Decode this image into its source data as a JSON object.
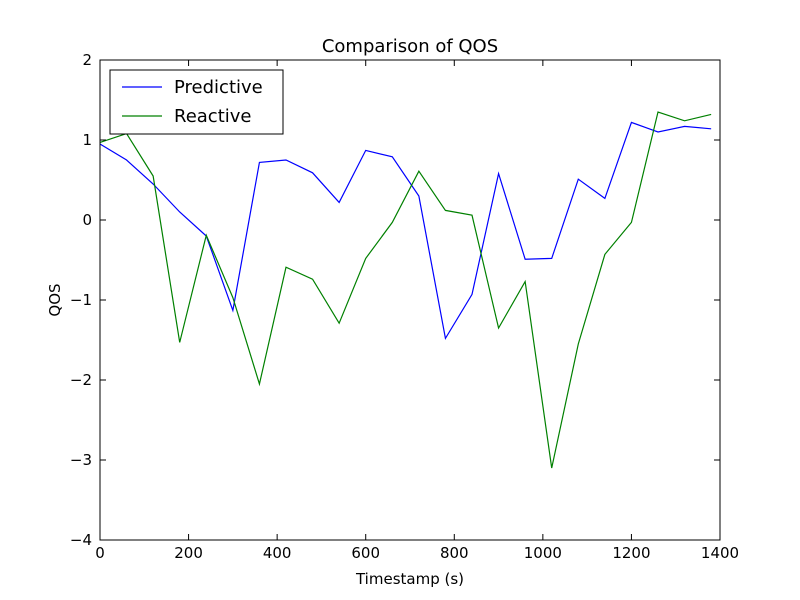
{
  "chart_data": {
    "type": "line",
    "title": "Comparison of QOS",
    "xlabel": "Timestamp (s)",
    "ylabel": "QOS",
    "xlim": [
      0,
      1400
    ],
    "ylim": [
      -4,
      2
    ],
    "xticks": [
      0,
      200,
      400,
      600,
      800,
      1000,
      1200,
      1400
    ],
    "yticks": [
      -4,
      -3,
      -2,
      -1,
      0,
      1,
      2
    ],
    "xtick_labels": [
      "0",
      "200",
      "400",
      "600",
      "800",
      "1000",
      "1200",
      "1400"
    ],
    "ytick_labels": [
      "−4",
      "−3",
      "−2",
      "−1",
      "0",
      "1",
      "2"
    ],
    "grid": false,
    "legend_position": "top-left",
    "x": [
      0,
      60,
      120,
      180,
      240,
      300,
      360,
      420,
      480,
      540,
      600,
      660,
      720,
      780,
      840,
      900,
      960,
      1020,
      1080,
      1140,
      1200,
      1260,
      1320,
      1380
    ],
    "series": [
      {
        "name": "Predictive",
        "color": "#0000ff",
        "values": [
          0.95,
          0.75,
          0.45,
          0.1,
          -0.2,
          -1.13,
          0.72,
          0.75,
          0.59,
          0.22,
          0.87,
          0.79,
          0.3,
          -1.48,
          -0.93,
          0.58,
          -0.49,
          -0.48,
          0.51,
          0.27,
          1.22,
          1.1,
          1.17,
          1.14
        ]
      },
      {
        "name": "Reactive",
        "color": "#008000",
        "values": [
          0.97,
          1.08,
          0.55,
          -1.53,
          -0.19,
          -0.97,
          -2.05,
          -0.59,
          -0.74,
          -1.29,
          -0.48,
          -0.03,
          0.61,
          0.12,
          0.06,
          -1.35,
          -0.77,
          -3.1,
          -1.55,
          -0.43,
          -0.03,
          1.35,
          1.24,
          1.32
        ]
      }
    ]
  }
}
